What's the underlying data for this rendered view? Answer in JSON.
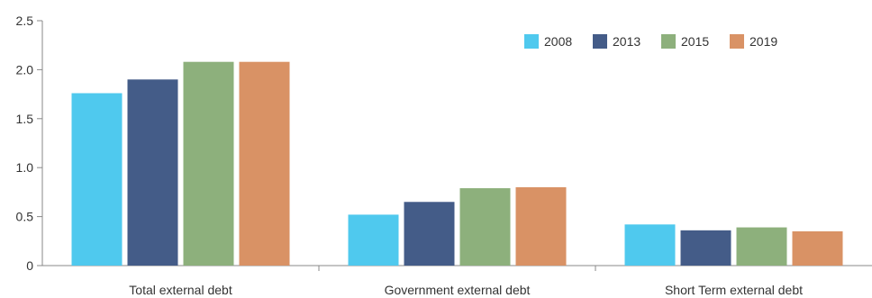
{
  "chart_data": {
    "type": "bar",
    "categories": [
      "Total external debt",
      "Government external debt",
      "Short Term external debt"
    ],
    "series": [
      {
        "name": "2008",
        "color": "#4fc9ee",
        "values": [
          1.76,
          0.52,
          0.42
        ]
      },
      {
        "name": "2013",
        "color": "#445c88",
        "values": [
          1.9,
          0.65,
          0.36
        ]
      },
      {
        "name": "2015",
        "color": "#8db07c",
        "values": [
          2.08,
          0.79,
          0.39
        ]
      },
      {
        "name": "2019",
        "color": "#d99265",
        "values": [
          2.08,
          0.8,
          0.35
        ]
      }
    ],
    "title": "",
    "xlabel": "",
    "ylabel": "",
    "ylim": [
      0,
      2.5
    ],
    "yticks": [
      "0",
      "0.5",
      "1.0",
      "1.5",
      "2.0",
      "2.5"
    ],
    "grid": false,
    "legend_position": "top-right"
  }
}
